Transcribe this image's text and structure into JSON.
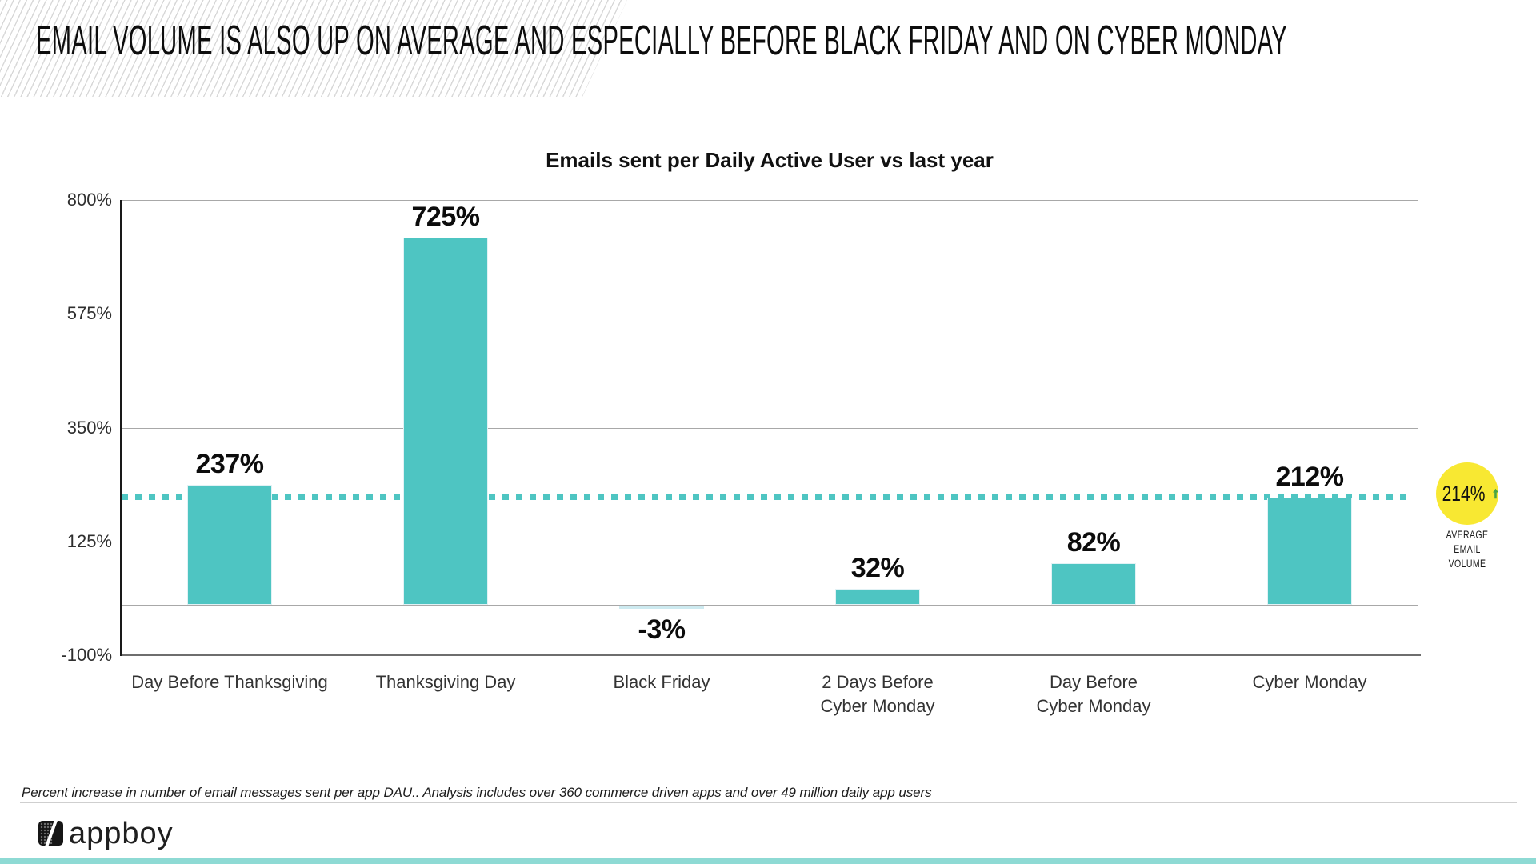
{
  "slide": {
    "title": "EMAIL VOLUME IS ALSO UP ON AVERAGE AND ESPECIALLY BEFORE BLACK FRIDAY AND ON CYBER MONDAY",
    "footnote": "Percent increase in number of email messages sent per app DAU..  Analysis includes over 360 commerce driven apps and over 49 million daily app users",
    "logo_text": "appboy"
  },
  "chart_data": {
    "type": "bar",
    "title": "Emails sent per Daily Active User vs last year",
    "categories": [
      "Day Before Thanksgiving",
      "Thanksgiving Day",
      "Black Friday",
      "2 Days Before\nCyber Monday",
      "Day Before\nCyber Monday",
      "Cyber Monday"
    ],
    "values": [
      237,
      725,
      -3,
      32,
      82,
      212
    ],
    "value_labels": [
      "237%",
      "725%",
      "-3%",
      "32%",
      "82%",
      "212%"
    ],
    "ylabel": "",
    "xlabel": "",
    "ylim": [
      -100,
      800
    ],
    "y_ticks": [
      800,
      575,
      350,
      125,
      -100
    ],
    "y_tick_labels": [
      "800%",
      "575%",
      "350%",
      "125%",
      "-100%"
    ],
    "grid": true,
    "legend": "none",
    "average_line": {
      "value": 214,
      "label": "214%",
      "caption_lines": [
        "AVERAGE",
        "EMAIL",
        "VOLUME"
      ],
      "style": "dotted"
    }
  },
  "colors": {
    "bar": "#4ec5c2",
    "bar_border": "#e2f2f5",
    "negative_bar": "#cdeaf0",
    "average_line": "#4ec5c2",
    "badge_yellow": "#f8e832",
    "arrow_green": "#47a447",
    "bottom_strip": "#8edad4"
  }
}
